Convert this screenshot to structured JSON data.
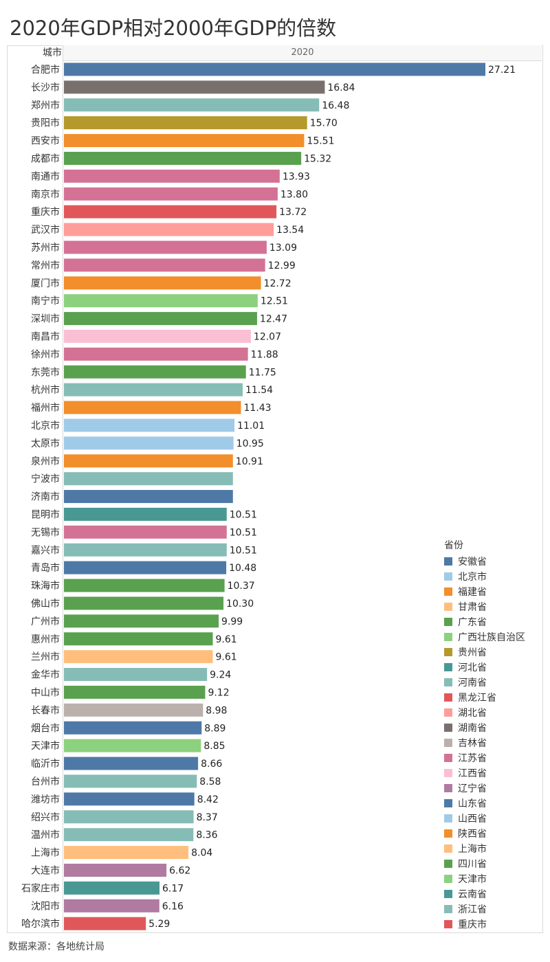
{
  "title": "2020年GDP相对2000年GDP的倍数",
  "source": "数据来源：各地统计局",
  "chart_data": {
    "type": "bar",
    "orientation": "horizontal",
    "row_header": "城市",
    "column_header": "2020",
    "legend_title": "省份",
    "legend_placement": "right",
    "xlim": [
      0,
      28
    ],
    "provinces": [
      {
        "name": "安徽省",
        "color": "#4e79a7"
      },
      {
        "name": "北京市",
        "color": "#a0cbe8"
      },
      {
        "name": "福建省",
        "color": "#f28e2b"
      },
      {
        "name": "甘肃省",
        "color": "#ffbe7d"
      },
      {
        "name": "广东省",
        "color": "#59a14f"
      },
      {
        "name": "广西壮族自治区",
        "color": "#8cd17d"
      },
      {
        "name": "贵州省",
        "color": "#b6992d"
      },
      {
        "name": "河北省",
        "color": "#499894"
      },
      {
        "name": "河南省",
        "color": "#86bcb6"
      },
      {
        "name": "黑龙江省",
        "color": "#e15759"
      },
      {
        "name": "湖北省",
        "color": "#ff9d9a"
      },
      {
        "name": "湖南省",
        "color": "#79706e"
      },
      {
        "name": "吉林省",
        "color": "#bab0ac"
      },
      {
        "name": "江苏省",
        "color": "#d37295"
      },
      {
        "name": "江西省",
        "color": "#fabfd2"
      },
      {
        "name": "辽宁省",
        "color": "#b07aa1"
      },
      {
        "name": "山东省",
        "color": "#4e79a7"
      },
      {
        "name": "山西省",
        "color": "#a0cbe8"
      },
      {
        "name": "陕西省",
        "color": "#f28e2b"
      },
      {
        "name": "上海市",
        "color": "#ffbe7d"
      },
      {
        "name": "四川省",
        "color": "#59a14f"
      },
      {
        "name": "天津市",
        "color": "#8cd17d"
      },
      {
        "name": "云南省",
        "color": "#499894"
      },
      {
        "name": "浙江省",
        "color": "#86bcb6"
      },
      {
        "name": "重庆市",
        "color": "#e15759"
      }
    ],
    "rows": [
      {
        "city": "合肥市",
        "value": 27.21,
        "label": "27.21",
        "province": "安徽省"
      },
      {
        "city": "长沙市",
        "value": 16.84,
        "label": "16.84",
        "province": "湖南省"
      },
      {
        "city": "郑州市",
        "value": 16.48,
        "label": "16.48",
        "province": "河南省"
      },
      {
        "city": "贵阳市",
        "value": 15.7,
        "label": "15.70",
        "province": "贵州省"
      },
      {
        "city": "西安市",
        "value": 15.51,
        "label": "15.51",
        "province": "陕西省"
      },
      {
        "city": "成都市",
        "value": 15.32,
        "label": "15.32",
        "province": "四川省"
      },
      {
        "city": "南通市",
        "value": 13.93,
        "label": "13.93",
        "province": "江苏省"
      },
      {
        "city": "南京市",
        "value": 13.8,
        "label": "13.80",
        "province": "江苏省"
      },
      {
        "city": "重庆市",
        "value": 13.72,
        "label": "13.72",
        "province": "重庆市"
      },
      {
        "city": "武汉市",
        "value": 13.54,
        "label": "13.54",
        "province": "湖北省"
      },
      {
        "city": "苏州市",
        "value": 13.09,
        "label": "13.09",
        "province": "江苏省"
      },
      {
        "city": "常州市",
        "value": 12.99,
        "label": "12.99",
        "province": "江苏省"
      },
      {
        "city": "厦门市",
        "value": 12.72,
        "label": "12.72",
        "province": "福建省"
      },
      {
        "city": "南宁市",
        "value": 12.51,
        "label": "12.51",
        "province": "广西壮族自治区"
      },
      {
        "city": "深圳市",
        "value": 12.47,
        "label": "12.47",
        "province": "广东省"
      },
      {
        "city": "南昌市",
        "value": 12.07,
        "label": "12.07",
        "province": "江西省"
      },
      {
        "city": "徐州市",
        "value": 11.88,
        "label": "11.88",
        "province": "江苏省"
      },
      {
        "city": "东莞市",
        "value": 11.75,
        "label": "11.75",
        "province": "广东省"
      },
      {
        "city": "杭州市",
        "value": 11.54,
        "label": "11.54",
        "province": "浙江省"
      },
      {
        "city": "福州市",
        "value": 11.43,
        "label": "11.43",
        "province": "福建省"
      },
      {
        "city": "北京市",
        "value": 11.01,
        "label": "11.01",
        "province": "北京市"
      },
      {
        "city": "太原市",
        "value": 10.95,
        "label": "10.95",
        "province": "山西省"
      },
      {
        "city": "泉州市",
        "value": 10.91,
        "label": "10.91",
        "province": "福建省"
      },
      {
        "city": "宁波市",
        "value": 10.91,
        "label": "",
        "province": "浙江省"
      },
      {
        "city": "济南市",
        "value": 10.91,
        "label": "",
        "province": "山东省"
      },
      {
        "city": "昆明市",
        "value": 10.51,
        "label": "10.51",
        "province": "云南省"
      },
      {
        "city": "无锡市",
        "value": 10.51,
        "label": "10.51",
        "province": "江苏省"
      },
      {
        "city": "嘉兴市",
        "value": 10.51,
        "label": "10.51",
        "province": "浙江省"
      },
      {
        "city": "青岛市",
        "value": 10.48,
        "label": "10.48",
        "province": "山东省"
      },
      {
        "city": "珠海市",
        "value": 10.37,
        "label": "10.37",
        "province": "广东省"
      },
      {
        "city": "佛山市",
        "value": 10.3,
        "label": "10.30",
        "province": "广东省"
      },
      {
        "city": "广州市",
        "value": 9.99,
        "label": "9.99",
        "province": "广东省"
      },
      {
        "city": "惠州市",
        "value": 9.61,
        "label": "9.61",
        "province": "广东省"
      },
      {
        "city": "兰州市",
        "value": 9.61,
        "label": "9.61",
        "province": "甘肃省"
      },
      {
        "city": "金华市",
        "value": 9.24,
        "label": "9.24",
        "province": "浙江省"
      },
      {
        "city": "中山市",
        "value": 9.12,
        "label": "9.12",
        "province": "广东省"
      },
      {
        "city": "长春市",
        "value": 8.98,
        "label": "8.98",
        "province": "吉林省"
      },
      {
        "city": "烟台市",
        "value": 8.89,
        "label": "8.89",
        "province": "山东省"
      },
      {
        "city": "天津市",
        "value": 8.85,
        "label": "8.85",
        "province": "天津市"
      },
      {
        "city": "临沂市",
        "value": 8.66,
        "label": "8.66",
        "province": "山东省"
      },
      {
        "city": "台州市",
        "value": 8.58,
        "label": "8.58",
        "province": "浙江省"
      },
      {
        "city": "潍坊市",
        "value": 8.42,
        "label": "8.42",
        "province": "山东省"
      },
      {
        "city": "绍兴市",
        "value": 8.37,
        "label": "8.37",
        "province": "浙江省"
      },
      {
        "city": "温州市",
        "value": 8.36,
        "label": "8.36",
        "province": "浙江省"
      },
      {
        "city": "上海市",
        "value": 8.04,
        "label": "8.04",
        "province": "上海市"
      },
      {
        "city": "大连市",
        "value": 6.62,
        "label": "6.62",
        "province": "辽宁省"
      },
      {
        "city": "石家庄市",
        "value": 6.17,
        "label": "6.17",
        "province": "河北省"
      },
      {
        "city": "沈阳市",
        "value": 6.16,
        "label": "6.16",
        "province": "辽宁省"
      },
      {
        "city": "哈尔滨市",
        "value": 5.29,
        "label": "5.29",
        "province": "黑龙江省"
      }
    ]
  }
}
